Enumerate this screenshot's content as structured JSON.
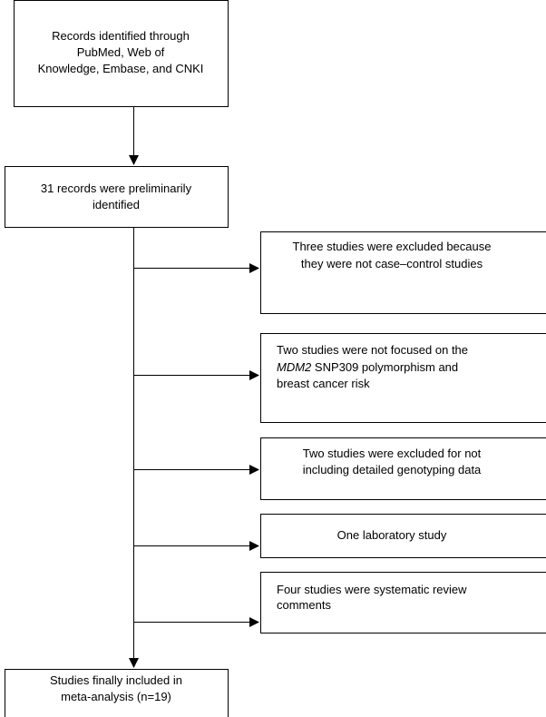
{
  "nodes": [
    {
      "lines": [
        "Records identified through",
        "PubMed, Web of",
        "Knowledge, Embase, and CNKI"
      ]
    },
    {
      "lines": [
        "31 records were preliminarily",
        "identified"
      ]
    },
    {
      "lines": [
        "Three studies were excluded because",
        "they were not case–control studies"
      ]
    },
    {
      "lines": [
        "Two studies were not focused on the",
        "MDM2",
        " SNP309 polymorphism and",
        "breast cancer risk"
      ]
    },
    {
      "lines": [
        "Two studies were excluded for not",
        "including detailed genotyping data"
      ]
    },
    {
      "lines": [
        "One laboratory study"
      ]
    },
    {
      "lines": [
        "Four studies were systematic review",
        "comments"
      ]
    },
    {
      "lines": [
        "Studies finally included in",
        "meta-analysis (n=19)"
      ]
    }
  ]
}
